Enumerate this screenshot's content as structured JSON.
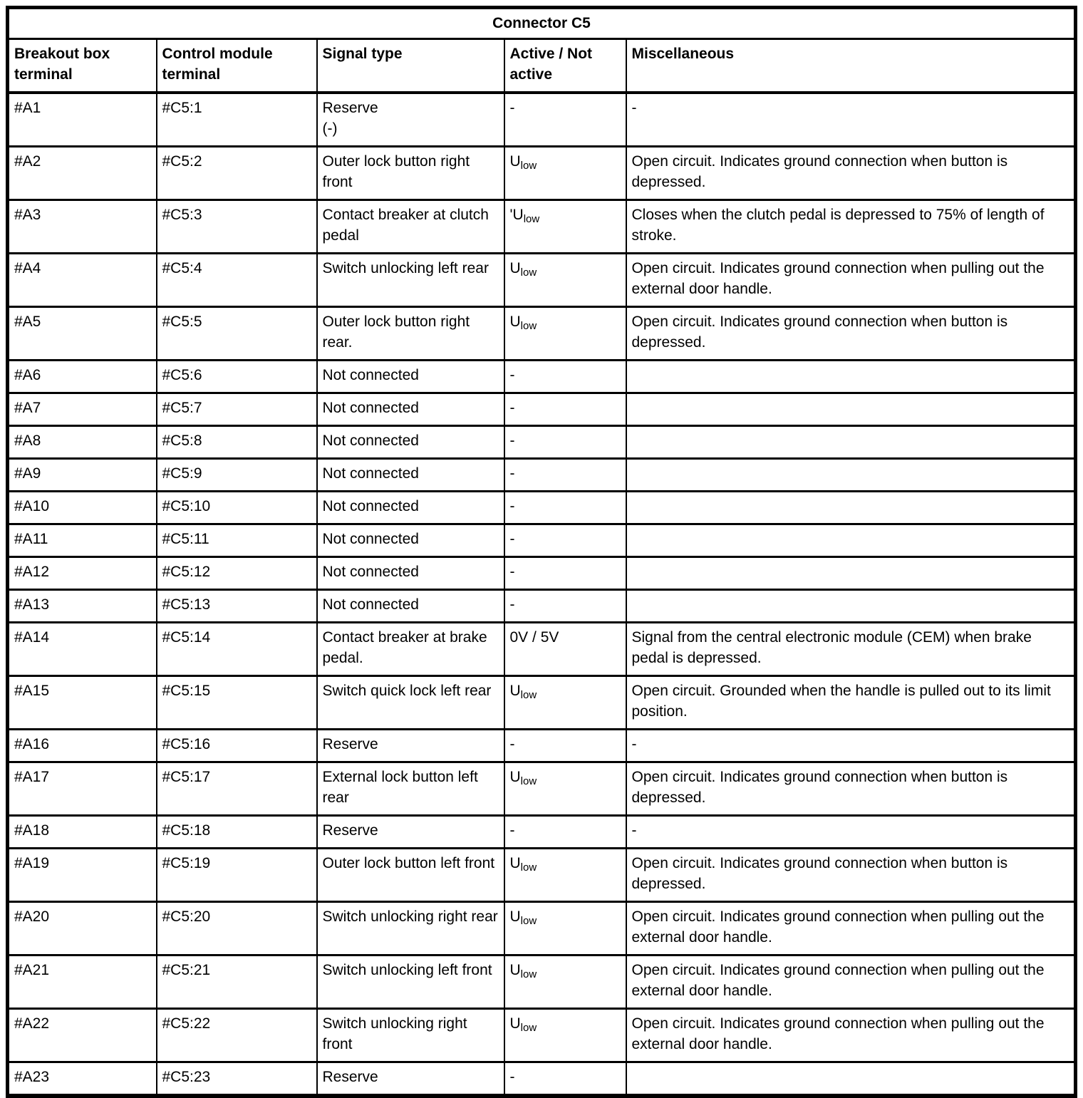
{
  "table": {
    "title": "Connector C5",
    "columns": [
      "Breakout box terminal",
      "Control module terminal",
      "Signal type",
      "Active / Not active",
      "Miscellaneous"
    ],
    "rows": [
      {
        "breakout": "#A1",
        "module": "#C5:1",
        "signal": "Reserve\n(-)",
        "active": "-",
        "misc": "-"
      },
      {
        "breakout": "#A2",
        "module": "#C5:2",
        "signal": "Outer lock button right front",
        "active": "U_{low}",
        "misc": "Open circuit. Indicates ground connection when button is depressed."
      },
      {
        "breakout": "#A3",
        "module": "#C5:3",
        "signal": "Contact breaker at clutch pedal",
        "active": "'U_{low}",
        "misc": "Closes when the clutch pedal is depressed to 75% of length of stroke."
      },
      {
        "breakout": "#A4",
        "module": "#C5:4",
        "signal": "Switch unlocking left rear",
        "active": "U_{low}",
        "misc": "Open circuit. Indicates ground connection when pulling out the external door handle."
      },
      {
        "breakout": "#A5",
        "module": "#C5:5",
        "signal": "Outer lock button right rear.",
        "active": "U_{low}",
        "misc": "Open circuit. Indicates ground connection when button is depressed."
      },
      {
        "breakout": "#A6",
        "module": "#C5:6",
        "signal": "Not connected",
        "active": "-",
        "misc": ""
      },
      {
        "breakout": "#A7",
        "module": "#C5:7",
        "signal": "Not connected",
        "active": "-",
        "misc": ""
      },
      {
        "breakout": "#A8",
        "module": "#C5:8",
        "signal": "Not connected",
        "active": "-",
        "misc": ""
      },
      {
        "breakout": "#A9",
        "module": "#C5:9",
        "signal": "Not connected",
        "active": "-",
        "misc": ""
      },
      {
        "breakout": "#A10",
        "module": "#C5:10",
        "signal": "Not connected",
        "active": "-",
        "misc": ""
      },
      {
        "breakout": "#A11",
        "module": "#C5:11",
        "signal": "Not connected",
        "active": "-",
        "misc": ""
      },
      {
        "breakout": "#A12",
        "module": "#C5:12",
        "signal": "Not connected",
        "active": "-",
        "misc": ""
      },
      {
        "breakout": "#A13",
        "module": "#C5:13",
        "signal": "Not connected",
        "active": "-",
        "misc": ""
      },
      {
        "breakout": "#A14",
        "module": "#C5:14",
        "signal": "Contact breaker at brake pedal.",
        "active": "0V / 5V",
        "misc": "Signal from the central electronic module (CEM) when brake pedal is depressed."
      },
      {
        "breakout": "#A15",
        "module": "#C5:15",
        "signal": "Switch quick lock left rear",
        "active": "U_{low}",
        "misc": "Open circuit. Grounded when the handle is pulled out to its limit position."
      },
      {
        "breakout": "#A16",
        "module": "#C5:16",
        "signal": "Reserve",
        "active": "-",
        "misc": "-"
      },
      {
        "breakout": "#A17",
        "module": "#C5:17",
        "signal": "External lock button left rear",
        "active": "U_{low}",
        "misc": "Open circuit. Indicates ground connection when button is depressed."
      },
      {
        "breakout": "#A18",
        "module": "#C5:18",
        "signal": "Reserve",
        "active": "-",
        "misc": "-"
      },
      {
        "breakout": "#A19",
        "module": "#C5:19",
        "signal": "Outer lock button left front",
        "active": "U_{low}",
        "misc": "Open circuit. Indicates ground connection when button is depressed."
      },
      {
        "breakout": "#A20",
        "module": "#C5:20",
        "signal": "Switch unlocking right rear",
        "active": "U_{low}",
        "misc": "Open circuit. Indicates ground connection when pulling out the external door handle."
      },
      {
        "breakout": "#A21",
        "module": "#C5:21",
        "signal": "Switch unlocking left front",
        "active": "U_{low}",
        "misc": "Open circuit. Indicates ground connection when pulling out the external door handle."
      },
      {
        "breakout": "#A22",
        "module": "#C5:22",
        "signal": "Switch unlocking right front",
        "active": "U_{low}",
        "misc": "Open circuit. Indicates ground connection when pulling out the external door handle."
      },
      {
        "breakout": "#A23",
        "module": "#C5:23",
        "signal": "Reserve",
        "active": "-",
        "misc": ""
      }
    ]
  }
}
